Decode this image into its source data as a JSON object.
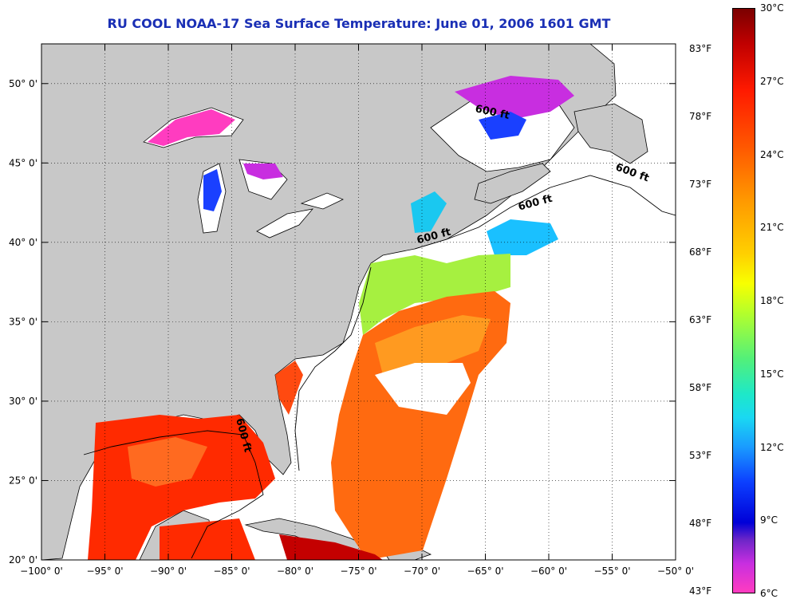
{
  "title": "RU COOL  NOAA-17  Sea Surface Temperature:  June 01, 2006 1601 GMT",
  "x_axis": {
    "lon_range": [
      -100,
      -50
    ],
    "tick_labels": [
      "−100° 0'",
      "−95° 0'",
      "−90° 0'",
      "−85° 0'",
      "−80° 0'",
      "−75° 0'",
      "−70° 0'",
      "−65° 0'",
      "−60° 0'",
      "−55° 0'",
      "−50° 0'"
    ],
    "tick_values": [
      -100,
      -95,
      -90,
      -85,
      -80,
      -75,
      -70,
      -65,
      -60,
      -55,
      -50
    ]
  },
  "y_axis": {
    "lat_range": [
      20,
      52.5
    ],
    "tick_labels": [
      "50° 0'",
      "45° 0'",
      "40° 0'",
      "35° 0'",
      "30° 0'",
      "25° 0'",
      "20° 0'"
    ],
    "tick_values": [
      50,
      45,
      40,
      35,
      30,
      25,
      20
    ]
  },
  "contour_labels": [
    {
      "text": "600 ft",
      "lon": -64.5,
      "lat": 48.0,
      "rotate": 12
    },
    {
      "text": "600 ft",
      "lon": -53.5,
      "lat": 44.2,
      "rotate": 20
    },
    {
      "text": "600 ft",
      "lon": -61.0,
      "lat": 42.3,
      "rotate": -15
    },
    {
      "text": "600 ft",
      "lon": -69.0,
      "lat": 40.2,
      "rotate": -15
    },
    {
      "text": "600 ft",
      "lon": -84.3,
      "lat": 27.8,
      "rotate": 75
    }
  ],
  "colorbar": {
    "celsius_labels": [
      "30°C",
      "27°C",
      "24°C",
      "21°C",
      "18°C",
      "15°C",
      "12°C",
      "9°C",
      "6°C"
    ],
    "celsius_values": [
      30,
      27,
      24,
      21,
      18,
      15,
      12,
      9,
      6
    ],
    "fahrenheit_labels": [
      "83°F",
      "78°F",
      "73°F",
      "68°F",
      "63°F",
      "58°F",
      "53°F",
      "48°F",
      "43°F"
    ],
    "fahrenheit_values": [
      83,
      78,
      73,
      68,
      63,
      58,
      53,
      48,
      43
    ]
  },
  "colors": {
    "title": "#1a2fb5",
    "land": "#c8c8c8",
    "sea_nodata": "#ffffff"
  }
}
